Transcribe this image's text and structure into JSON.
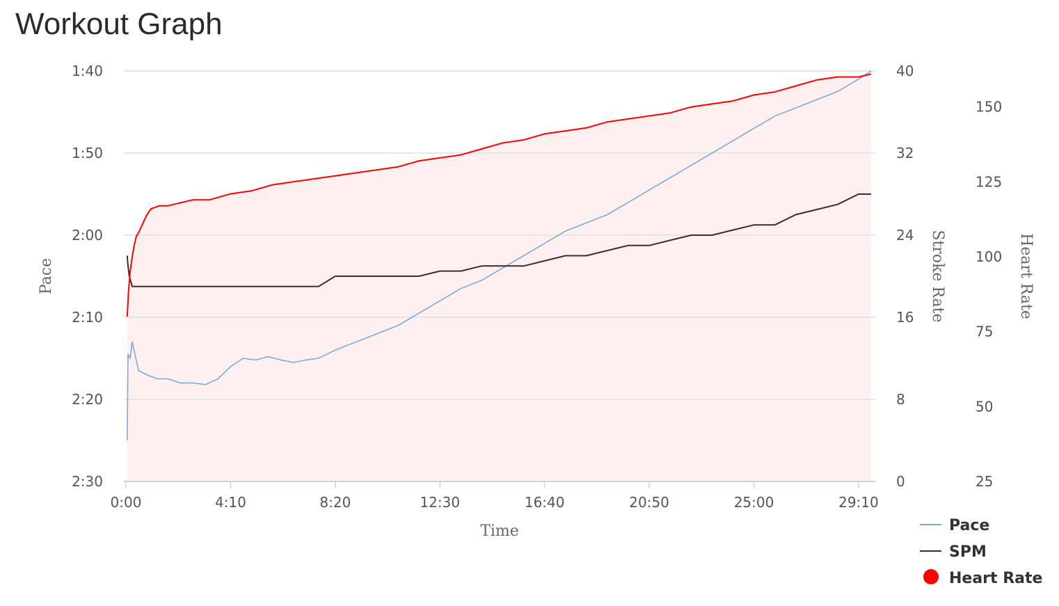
{
  "page": {
    "title": "Workout Graph"
  },
  "chart_data": {
    "type": "line",
    "title": "Workout Graph",
    "xlabel": "Time",
    "x_unit": "mm:ss",
    "x_ticks": [
      "0:00",
      "4:10",
      "8:20",
      "12:30",
      "16:40",
      "20:50",
      "25:00",
      "29:10"
    ],
    "x_tick_values_sec": [
      0,
      250,
      500,
      750,
      1000,
      1250,
      1500,
      1750
    ],
    "xlim_sec": [
      -5,
      1790
    ],
    "grid": true,
    "legend_position": "bottom-right",
    "axes": {
      "pace": {
        "label": "Pace",
        "side": "left",
        "unit": "sec/500m",
        "inverted": true,
        "ticks": [
          "1:40",
          "1:50",
          "2:00",
          "2:10",
          "2:20",
          "2:30"
        ],
        "range_sec": [
          100,
          150
        ]
      },
      "spm": {
        "label": "Stroke Rate",
        "side": "right",
        "ticks": [
          "40",
          "32",
          "24",
          "16",
          "8",
          "0"
        ],
        "range": [
          0,
          40
        ]
      },
      "hr": {
        "label": "Heart Rate",
        "side": "right-outer",
        "ticks": [
          "150",
          "125",
          "100",
          "75",
          "50",
          "25"
        ],
        "range": [
          25,
          162
        ]
      }
    },
    "series": [
      {
        "name": "Pace",
        "axis": "pace",
        "color": "#7aaadd",
        "marker": "line",
        "x_sec": [
          3,
          5,
          10,
          15,
          30,
          50,
          75,
          100,
          130,
          160,
          190,
          220,
          250,
          280,
          310,
          340,
          370,
          400,
          430,
          460,
          500,
          550,
          600,
          650,
          700,
          750,
          800,
          850,
          900,
          950,
          1000,
          1050,
          1100,
          1150,
          1200,
          1250,
          1300,
          1350,
          1400,
          1450,
          1500,
          1550,
          1600,
          1650,
          1700,
          1750,
          1780
        ],
        "y_sec": [
          145,
          134.5,
          135,
          133,
          136.5,
          137,
          137.5,
          137.5,
          138,
          138,
          138.2,
          137.5,
          136,
          135,
          135.2,
          134.8,
          135.2,
          135.5,
          135.2,
          135,
          134,
          133,
          132,
          131,
          129.5,
          128,
          126.5,
          125.5,
          124,
          122.5,
          121,
          119.5,
          118.5,
          117.5,
          116,
          114.5,
          113,
          111.5,
          110,
          108.5,
          107,
          105.5,
          104.5,
          103.5,
          102.5,
          101,
          100
        ]
      },
      {
        "name": "SPM",
        "axis": "spm",
        "color": "#3d2b2e",
        "marker": "line",
        "x_sec": [
          3,
          5,
          8,
          15,
          60,
          120,
          200,
          300,
          400,
          460,
          500,
          550,
          600,
          650,
          700,
          750,
          800,
          850,
          900,
          950,
          1000,
          1050,
          1100,
          1150,
          1200,
          1250,
          1300,
          1350,
          1400,
          1450,
          1500,
          1550,
          1600,
          1650,
          1700,
          1750,
          1780
        ],
        "y": [
          22,
          21,
          20,
          19,
          19,
          19,
          19,
          19,
          19,
          19,
          20,
          20,
          20,
          20,
          20,
          20.5,
          20.5,
          21,
          21,
          21,
          21.5,
          22,
          22,
          22.5,
          23,
          23,
          23.5,
          24,
          24,
          24.5,
          25,
          25,
          26,
          26.5,
          27,
          28,
          28
        ]
      },
      {
        "name": "Heart Rate",
        "axis": "hr",
        "color": "#ff0000",
        "marker": "circle",
        "fill": "#fff0f0",
        "x_sec": [
          3,
          6,
          10,
          15,
          20,
          25,
          30,
          40,
          50,
          60,
          80,
          100,
          130,
          160,
          200,
          250,
          300,
          350,
          400,
          450,
          500,
          550,
          600,
          650,
          700,
          750,
          800,
          850,
          900,
          950,
          1000,
          1050,
          1100,
          1150,
          1200,
          1250,
          1300,
          1350,
          1400,
          1450,
          1500,
          1550,
          1600,
          1650,
          1700,
          1750,
          1780
        ],
        "y": [
          80,
          88,
          95,
          100,
          104,
          107,
          108,
          111,
          114,
          116,
          117,
          117,
          118,
          119,
          119,
          121,
          122,
          124,
          125,
          126,
          127,
          128,
          129,
          130,
          132,
          133,
          134,
          136,
          138,
          139,
          141,
          142,
          143,
          145,
          146,
          147,
          148,
          150,
          151,
          152,
          154,
          155,
          157,
          159,
          160,
          160,
          161
        ]
      }
    ]
  }
}
